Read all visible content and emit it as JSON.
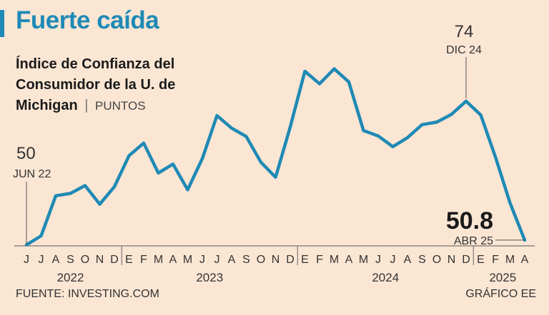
{
  "header": {
    "headline": "Fuerte caída",
    "subtitle": "Índice de Confianza del Consumidor de la U. de Michigan",
    "separator": "|",
    "unit": "PUNTOS"
  },
  "footer": {
    "source": "FUENTE: INVESTING.COM",
    "credit": "GRÁFICO EE"
  },
  "colors": {
    "line": "#1f8ab5",
    "background": "#fbe6d4"
  },
  "chart_data": {
    "type": "line",
    "x": [
      "Jun 22",
      "Jul 22",
      "Ago 22",
      "Sep 22",
      "Oct 22",
      "Nov 22",
      "Dic 22",
      "Ene 23",
      "Feb 23",
      "Mar 23",
      "Abr 23",
      "May 23",
      "Jun 23",
      "Jul 23",
      "Ago 23",
      "Sep 23",
      "Oct 23",
      "Nov 23",
      "Dic 23",
      "Ene 24",
      "Feb 24",
      "Mar 24",
      "Abr 24",
      "May 24",
      "Jun 24",
      "Jul 24",
      "Ago 24",
      "Sep 24",
      "Oct 24",
      "Nov 24",
      "Dic 24",
      "Ene 25",
      "Feb 25",
      "Mar 25",
      "Abr 25"
    ],
    "values": [
      50,
      51.5,
      58.2,
      58.6,
      59.9,
      56.8,
      59.7,
      64.9,
      67,
      62,
      63.5,
      59.2,
      64.4,
      71.6,
      69.5,
      68.1,
      63.8,
      61.3,
      69.7,
      79,
      76.9,
      79.4,
      77.2,
      69.1,
      68.2,
      66.4,
      67.9,
      70.1,
      70.5,
      71.8,
      74,
      71.7,
      64.7,
      57,
      50.8
    ],
    "tick_labels": [
      "J",
      "J",
      "A",
      "S",
      "O",
      "N",
      "D",
      "E",
      "F",
      "M",
      "A",
      "M",
      "J",
      "J",
      "A",
      "S",
      "O",
      "N",
      "D",
      "E",
      "F",
      "M",
      "A",
      "M",
      "J",
      "J",
      "A",
      "S",
      "O",
      "N",
      "D",
      "E",
      "F",
      "M",
      "A"
    ],
    "year_labels": [
      {
        "year": "2022",
        "start": 0,
        "end": 6
      },
      {
        "year": "2023",
        "start": 7,
        "end": 18
      },
      {
        "year": "2024",
        "start": 19,
        "end": 30
      },
      {
        "year": "2025",
        "start": 31,
        "end": 34
      }
    ],
    "year_boundaries": [
      7,
      19,
      31
    ],
    "ylim": [
      49,
      84
    ],
    "grid": false,
    "annotations": [
      {
        "index": 0,
        "value_label": "50",
        "date_label": "JUN 22",
        "style": "normal",
        "position": "above"
      },
      {
        "index": 30,
        "value_label": "74",
        "date_label": "DIC 24",
        "style": "normal",
        "position": "above"
      },
      {
        "index": 34,
        "value_label": "50.8",
        "date_label": "ABR 25",
        "style": "bold",
        "position": "left"
      }
    ]
  }
}
